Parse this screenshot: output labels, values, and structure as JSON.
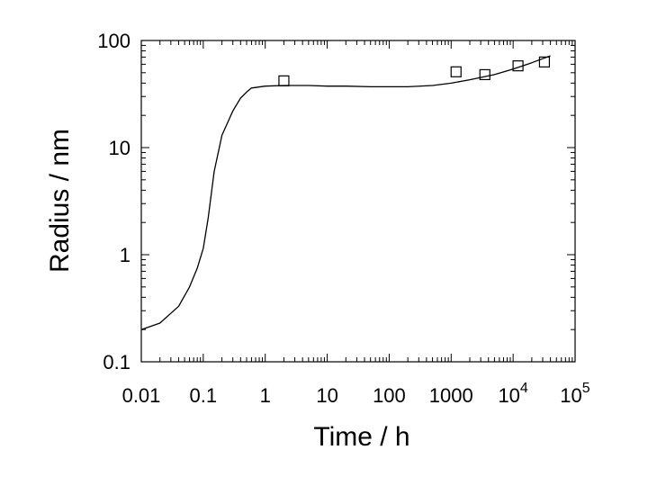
{
  "chart_data": {
    "type": "scatter",
    "xlabel": "Time / h",
    "ylabel": "Radius / nm",
    "xscale": "log",
    "yscale": "log",
    "xlim": [
      0.01,
      100000
    ],
    "ylim": [
      0.1,
      100
    ],
    "grid": false,
    "x_ticks": [
      {
        "value": 0.01,
        "label": "0.01"
      },
      {
        "value": 0.1,
        "label": "0.1"
      },
      {
        "value": 1,
        "label": "1"
      },
      {
        "value": 10,
        "label": "10"
      },
      {
        "value": 100,
        "label": "100"
      },
      {
        "value": 1000,
        "label": "1000"
      },
      {
        "value": 10000,
        "label": "10",
        "exponent": "4"
      },
      {
        "value": 100000,
        "label": "10",
        "exponent": "5"
      }
    ],
    "y_ticks": [
      {
        "value": 0.1,
        "label": "0.1"
      },
      {
        "value": 1,
        "label": "1"
      },
      {
        "value": 10,
        "label": "10"
      },
      {
        "value": 100,
        "label": "100"
      }
    ],
    "series": [
      {
        "kind": "line",
        "color": "#000000",
        "x": [
          0.01,
          0.02,
          0.04,
          0.06,
          0.08,
          0.1,
          0.12,
          0.15,
          0.2,
          0.3,
          0.4,
          0.5,
          0.6,
          1,
          2,
          5,
          10,
          20,
          50,
          100,
          200,
          500,
          1000,
          2000,
          5000,
          10000,
          20000,
          40000
        ],
        "y": [
          0.2,
          0.23,
          0.33,
          0.5,
          0.75,
          1.15,
          2.2,
          6,
          13,
          22,
          29,
          33,
          36,
          37.5,
          38,
          38,
          37.5,
          37.5,
          37,
          37,
          37,
          38,
          40,
          43,
          48,
          54,
          62,
          72
        ]
      },
      {
        "kind": "scatter",
        "marker": "open-square",
        "color": "#000000",
        "x": [
          2,
          1200,
          3500,
          12000,
          32000
        ],
        "y": [
          42,
          51,
          48,
          58,
          63
        ]
      }
    ]
  }
}
